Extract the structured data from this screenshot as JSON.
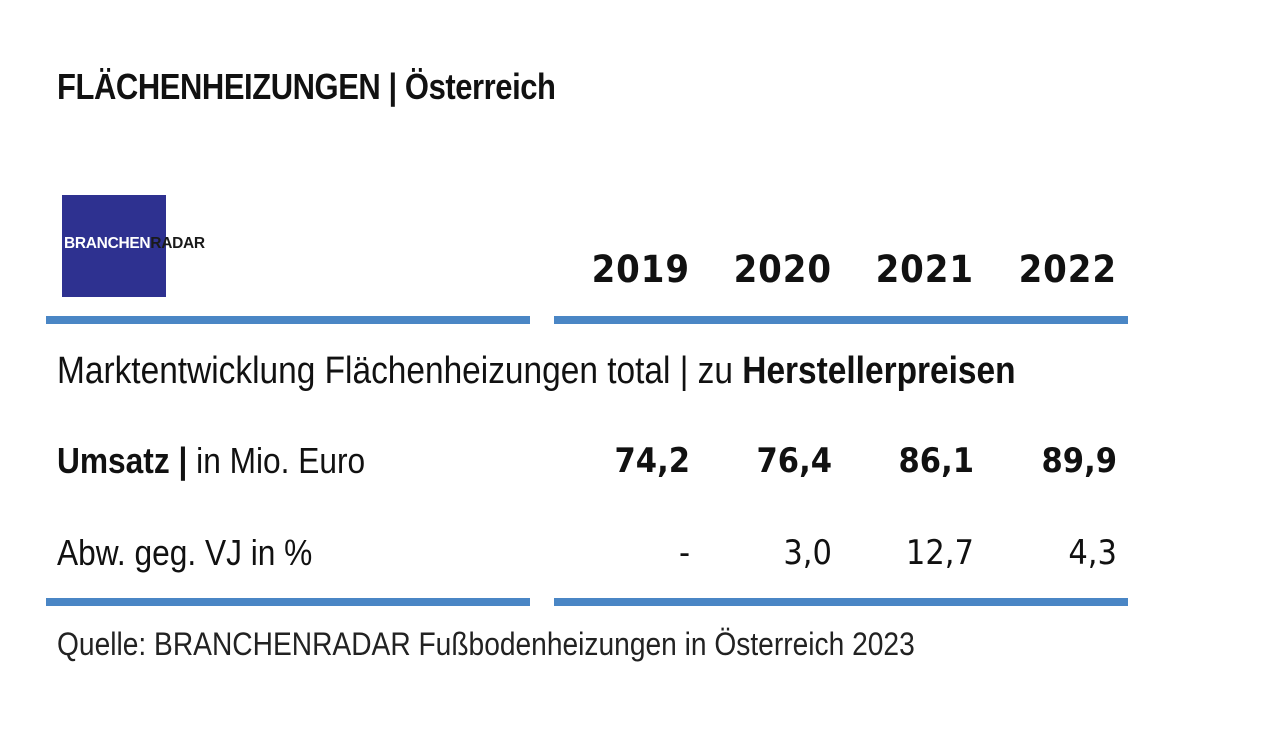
{
  "title": "FLÄCHENHEIZUNGEN | Österreich",
  "logo": {
    "part1": "BRANCHEN",
    "part2": "RADAR"
  },
  "section": {
    "text": "Marktentwicklung Flächenheizungen total | zu ",
    "bold": "Herstellerpreisen"
  },
  "rows": {
    "umsatz": {
      "label_bold": "Umsatz |",
      "label_rest": " in Mio. Euro"
    },
    "abw": {
      "label": "Abw. geg. VJ in %"
    }
  },
  "source": "Quelle: BRANCHENRADAR Fußbodenheizungen in Österreich 2023",
  "colors": {
    "rule": "#4a86c5",
    "logo_bg": "#2e3190"
  },
  "chart_data": {
    "type": "table",
    "columns": [
      "2019",
      "2020",
      "2021",
      "2022"
    ],
    "rows": [
      {
        "name": "Umsatz | in Mio. Euro",
        "values": [
          74.2,
          76.4,
          86.1,
          89.9
        ],
        "display": [
          "74,2",
          "76,4",
          "86,1",
          "89,9"
        ]
      },
      {
        "name": "Abw. geg. VJ in %",
        "values": [
          null,
          3.0,
          12.7,
          4.3
        ],
        "display": [
          "-",
          "3,0",
          "12,7",
          "4,3"
        ]
      }
    ]
  }
}
